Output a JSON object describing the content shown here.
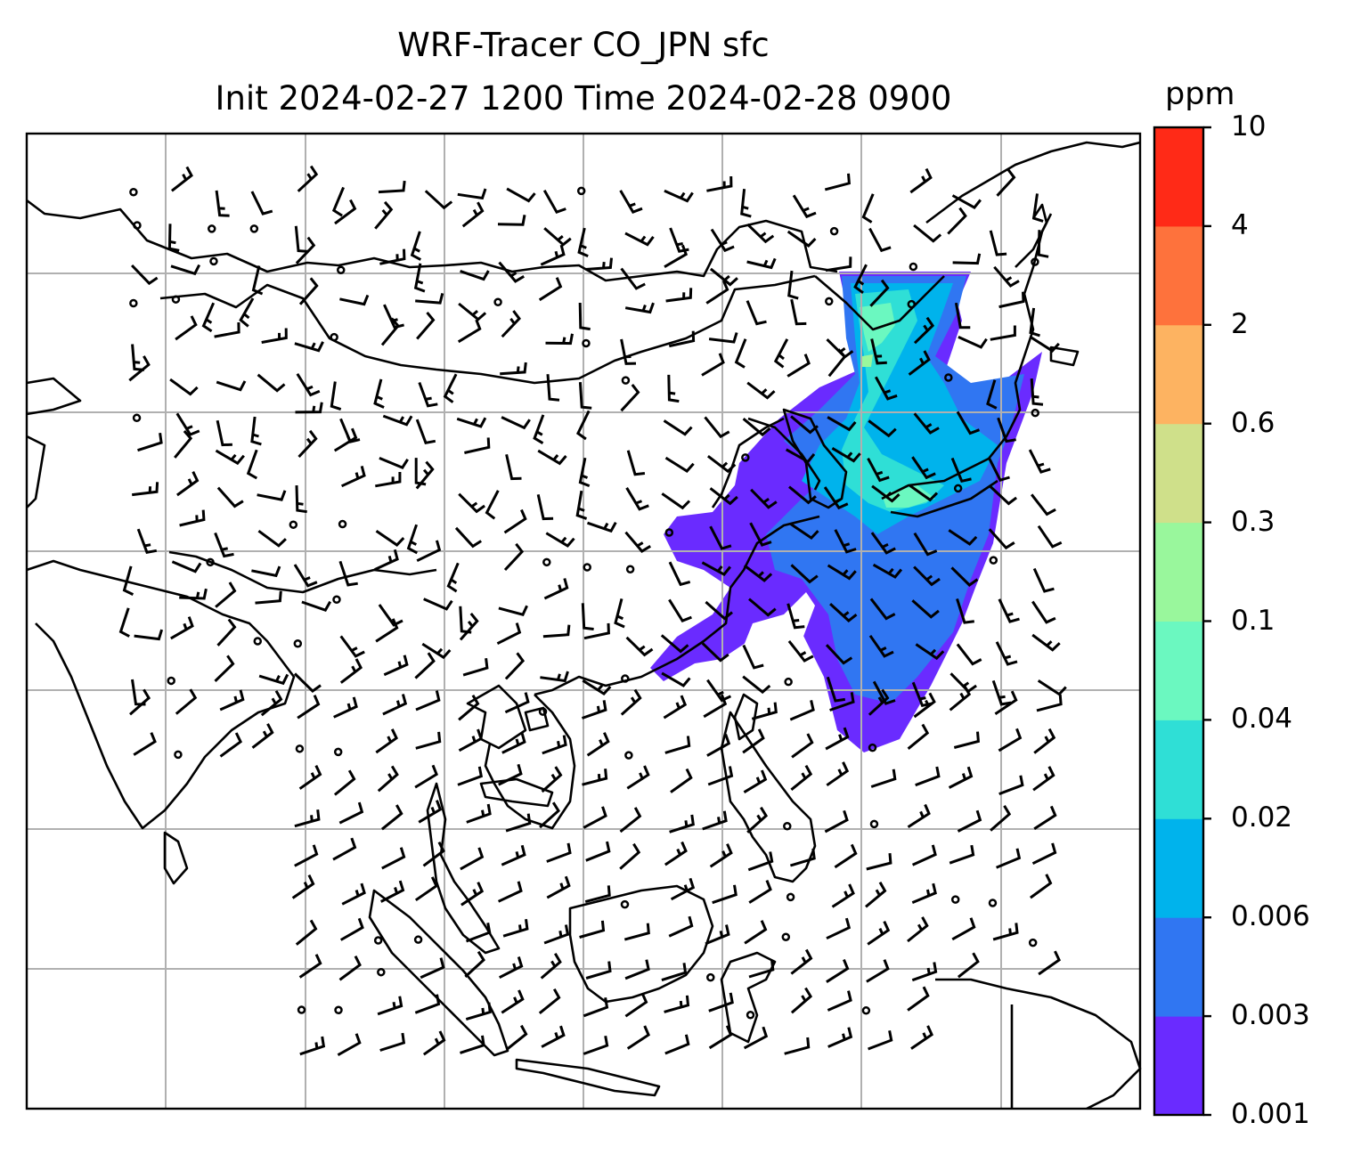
{
  "title": {
    "line1": "WRF-Tracer CO_JPN sfc",
    "line2": "Init 2024-02-27 1200 Time 2024-02-28 0900"
  },
  "colorbar": {
    "units": "ppm",
    "ticks": [
      "0.001",
      "0.003",
      "0.006",
      "0.02",
      "0.04",
      "0.1",
      "0.3",
      "0.6",
      "2",
      "4",
      "10"
    ],
    "colors": [
      "#6a2bff",
      "#3076f2",
      "#00b3ec",
      "#2fdfd6",
      "#6bf8c0",
      "#99f79c",
      "#cfe08a",
      "#fdb361",
      "#fe723c",
      "#ff2a17"
    ]
  },
  "map": {
    "grid": true,
    "features": [
      "coastlines",
      "country borders",
      "wind barbs",
      "CO tracer plume"
    ]
  }
}
